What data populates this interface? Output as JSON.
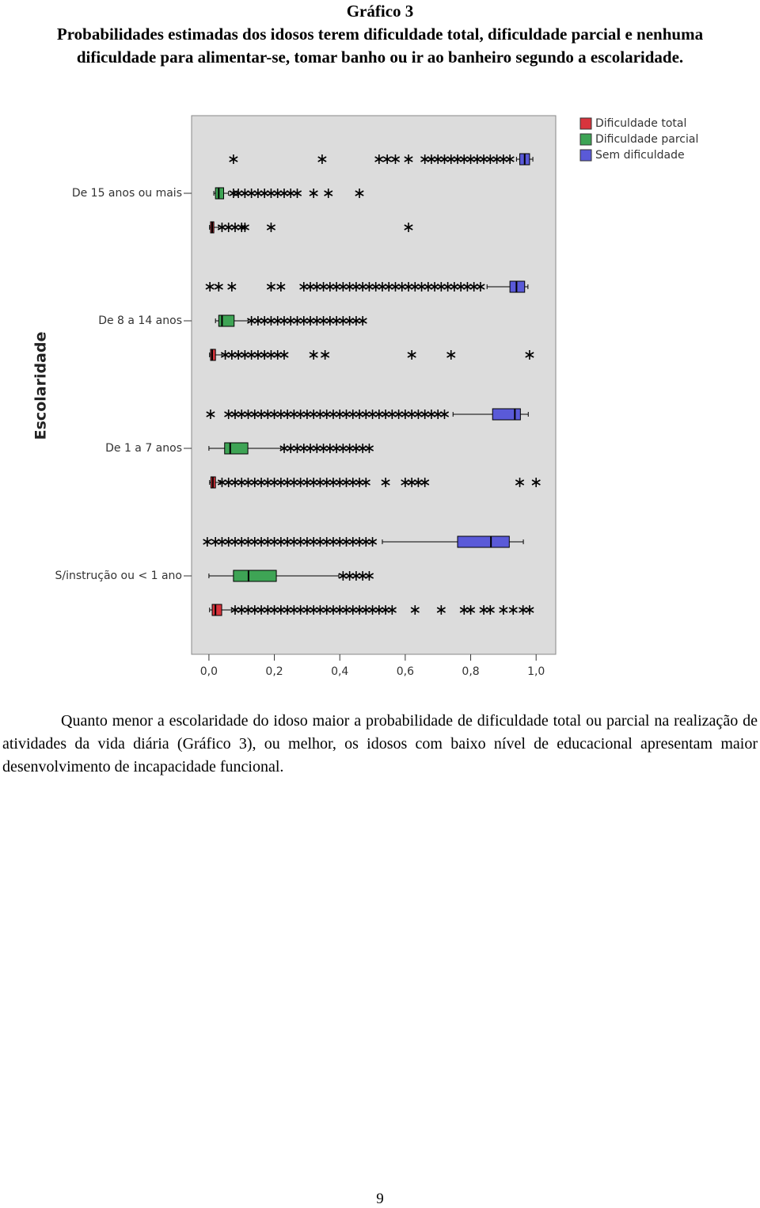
{
  "header": {
    "figure_label": "Gráfico 3",
    "caption": "Probabilidades estimadas dos idosos terem dificuldade total, dificuldade parcial e nenhuma dificuldade para alimentar-se, tomar banho ou ir ao banheiro segundo a escolaridade."
  },
  "chart_data": {
    "type": "boxplot",
    "orientation": "horizontal",
    "y_label": "Escolaridade",
    "categories": [
      "De 15 anos ou mais",
      "De 8 a 14 anos",
      "De 1 a 7 anos",
      "S/instrução ou < 1 ano"
    ],
    "xlim": [
      -0.053,
      1.06
    ],
    "xticks": [
      {
        "value": 0,
        "label": "0,0"
      },
      {
        "value": 0.2,
        "label": "0,2"
      },
      {
        "value": 0.4,
        "label": "0,4"
      },
      {
        "value": 0.6,
        "label": "0,6"
      },
      {
        "value": 0.8,
        "label": "0,8"
      },
      {
        "value": 1,
        "label": "1,0"
      }
    ],
    "legend": "top-right",
    "series": [
      {
        "name": "Dificuldade total",
        "color": "#d8343d",
        "values": [
          {
            "low": 0.002,
            "q1": 0.005,
            "median": 0.01,
            "q3": 0.015,
            "high": 0.03,
            "outliers": [
              0.04,
              0.06,
              0.08,
              0.1,
              0.11,
              0.19,
              0.61
            ]
          },
          {
            "low": 0.002,
            "q1": 0.005,
            "median": 0.01,
            "q3": 0.02,
            "high": 0.04,
            "outliers": [
              0.05,
              0.07,
              0.09,
              0.11,
              0.13,
              0.15,
              0.17,
              0.19,
              0.21,
              0.23,
              0.32,
              0.355,
              0.62,
              0.74,
              0.98
            ]
          },
          {
            "low": 0.002,
            "q1": 0.006,
            "median": 0.012,
            "q3": 0.02,
            "high": 0.035,
            "outliers": [
              0.04,
              0.06,
              0.08,
              0.1,
              0.12,
              0.14,
              0.16,
              0.18,
              0.2,
              0.22,
              0.24,
              0.26,
              0.28,
              0.3,
              0.32,
              0.34,
              0.36,
              0.38,
              0.4,
              0.42,
              0.44,
              0.46,
              0.48,
              0.54,
              0.6,
              0.62,
              0.64,
              0.66,
              0.95,
              1.0
            ]
          },
          {
            "low": 0.002,
            "q1": 0.01,
            "median": 0.02,
            "q3": 0.039,
            "high": 0.07,
            "outliers": [
              0.08,
              0.1,
              0.12,
              0.14,
              0.16,
              0.18,
              0.2,
              0.22,
              0.24,
              0.26,
              0.28,
              0.3,
              0.32,
              0.34,
              0.36,
              0.38,
              0.4,
              0.42,
              0.44,
              0.46,
              0.48,
              0.5,
              0.52,
              0.54,
              0.56,
              0.63,
              0.71,
              0.78,
              0.8,
              0.84,
              0.86,
              0.9,
              0.93,
              0.96,
              0.98
            ]
          }
        ]
      },
      {
        "name": "Dificuldade parcial",
        "color": "#3ea455",
        "values": [
          {
            "low": 0.015,
            "q1": 0.02,
            "median": 0.03,
            "q3": 0.045,
            "high": 0.06,
            "outliers": [
              0.075,
              0.09,
              0.11,
              0.13,
              0.15,
              0.17,
              0.19,
              0.21,
              0.23,
              0.25,
              0.27,
              0.32,
              0.365,
              0.46
            ]
          },
          {
            "low": 0.02,
            "q1": 0.03,
            "median": 0.04,
            "q3": 0.077,
            "high": 0.12,
            "outliers": [
              0.13,
              0.15,
              0.17,
              0.19,
              0.21,
              0.23,
              0.25,
              0.27,
              0.29,
              0.31,
              0.33,
              0.35,
              0.37,
              0.39,
              0.41,
              0.43,
              0.45,
              0.47
            ]
          },
          {
            "low": 0.0,
            "q1": 0.048,
            "median": 0.065,
            "q3": 0.119,
            "high": 0.22,
            "outliers": [
              0.23,
              0.25,
              0.27,
              0.29,
              0.31,
              0.33,
              0.35,
              0.37,
              0.39,
              0.41,
              0.43,
              0.45,
              0.47,
              0.49
            ]
          },
          {
            "low": 0.0,
            "q1": 0.075,
            "median": 0.121,
            "q3": 0.206,
            "high": 0.397,
            "outliers": [
              0.41,
              0.43,
              0.45,
              0.47,
              0.49
            ]
          }
        ]
      },
      {
        "name": "Sem dificuldade",
        "color": "#5a5ad8",
        "values": [
          {
            "low": 0.94,
            "q1": 0.95,
            "median": 0.965,
            "q3": 0.98,
            "high": 0.99,
            "outliers": [
              0.075,
              0.346,
              0.52,
              0.545,
              0.57,
              0.61,
              0.66,
              0.68,
              0.7,
              0.72,
              0.74,
              0.76,
              0.78,
              0.8,
              0.82,
              0.84,
              0.86,
              0.88,
              0.9,
              0.92
            ]
          },
          {
            "low": 0.85,
            "q1": 0.92,
            "median": 0.94,
            "q3": 0.965,
            "high": 0.975,
            "outliers": [
              0.003,
              0.03,
              0.07,
              0.19,
              0.22,
              0.29,
              0.31,
              0.33,
              0.35,
              0.37,
              0.39,
              0.41,
              0.43,
              0.45,
              0.47,
              0.49,
              0.51,
              0.53,
              0.55,
              0.57,
              0.59,
              0.61,
              0.63,
              0.65,
              0.67,
              0.69,
              0.71,
              0.73,
              0.75,
              0.77,
              0.79,
              0.81,
              0.83
            ]
          },
          {
            "low": 0.746,
            "q1": 0.867,
            "median": 0.935,
            "q3": 0.952,
            "high": 0.976,
            "outliers": [
              0.005,
              0.06,
              0.08,
              0.1,
              0.12,
              0.14,
              0.16,
              0.18,
              0.2,
              0.22,
              0.24,
              0.26,
              0.28,
              0.3,
              0.32,
              0.34,
              0.36,
              0.38,
              0.4,
              0.42,
              0.44,
              0.46,
              0.48,
              0.5,
              0.52,
              0.54,
              0.56,
              0.58,
              0.6,
              0.62,
              0.64,
              0.66,
              0.68,
              0.7,
              0.72
            ]
          },
          {
            "low": 0.53,
            "q1": 0.76,
            "median": 0.862,
            "q3": 0.918,
            "high": 0.961,
            "outliers": [
              -0.005,
              0.02,
              0.04,
              0.06,
              0.08,
              0.1,
              0.12,
              0.14,
              0.16,
              0.18,
              0.2,
              0.22,
              0.24,
              0.26,
              0.28,
              0.3,
              0.32,
              0.34,
              0.36,
              0.38,
              0.4,
              0.42,
              0.44,
              0.46,
              0.48,
              0.5
            ]
          }
        ]
      }
    ]
  },
  "paragraph": "Quanto menor a escolaridade do idoso maior a probabilidade de dificuldade total ou parcial na realização de atividades da vida diária (Gráfico 3), ou melhor, os idosos com baixo nível de educacional apresentam maior desenvolvimento de incapacidade funcional.",
  "page_number": "9"
}
